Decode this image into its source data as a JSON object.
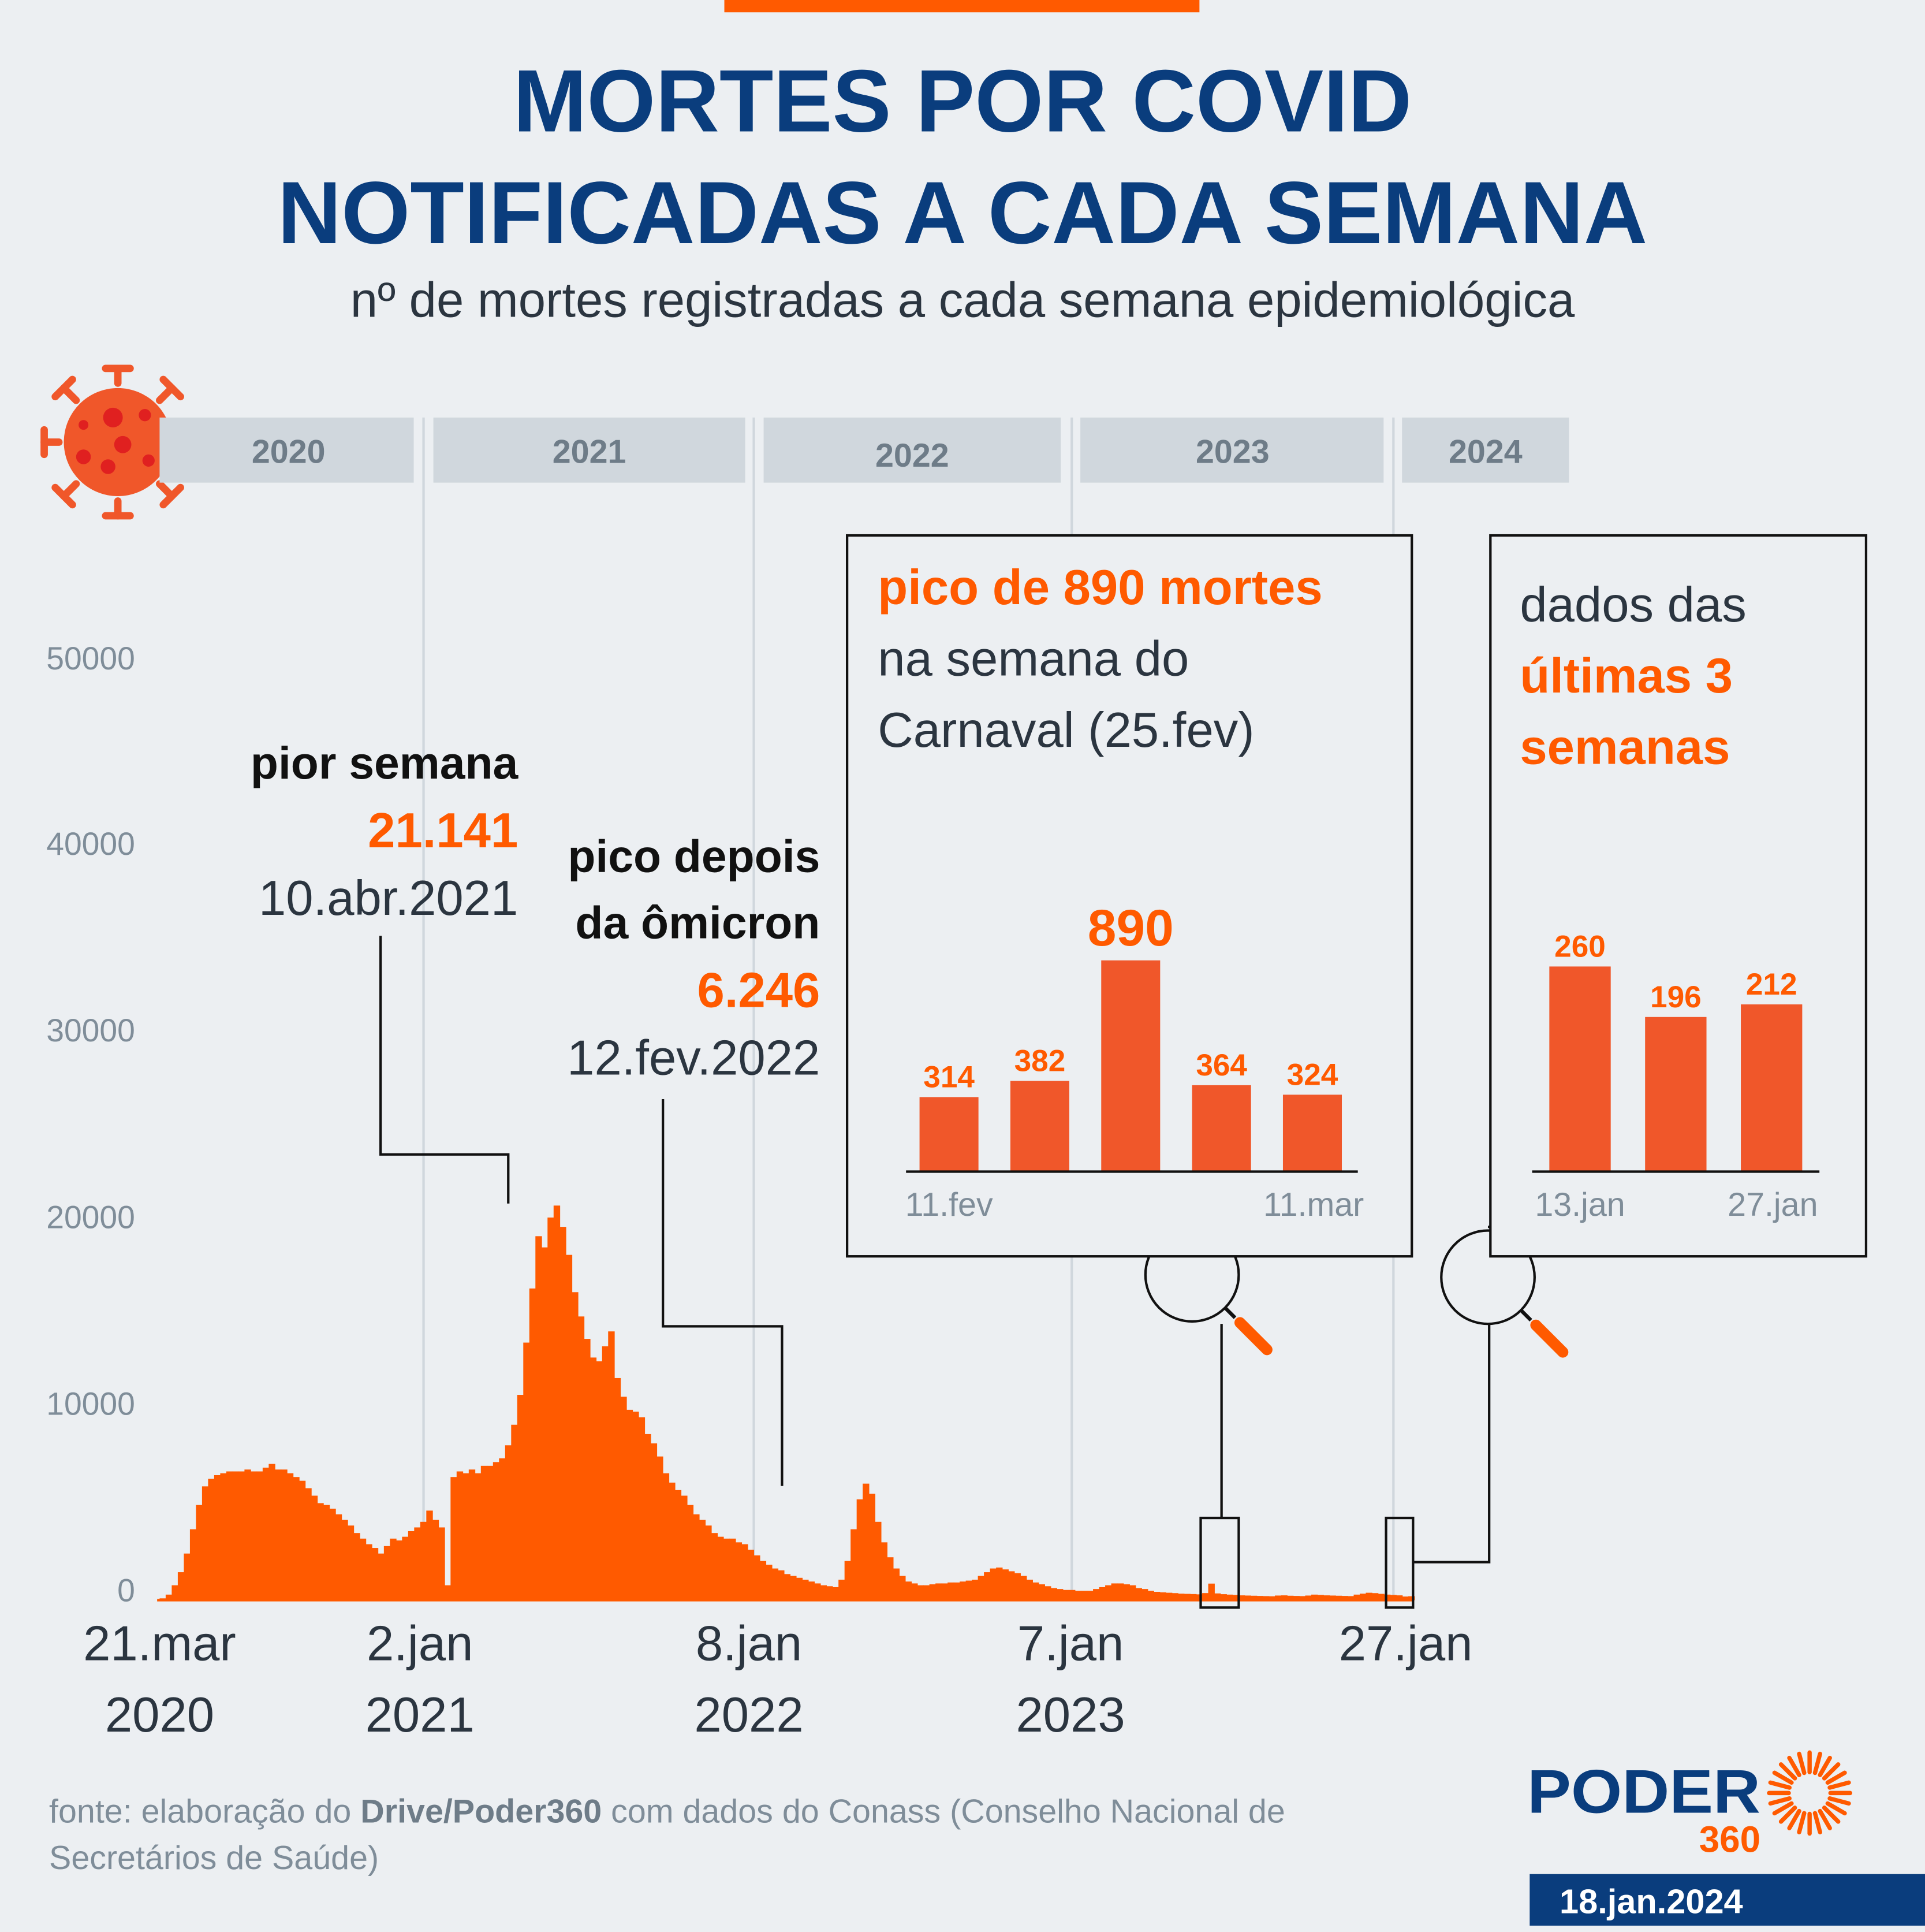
{
  "header": {
    "title_line1": "MORTES POR COVID",
    "title_line2": "NOTIFICADAS A CADA SEMANA",
    "subtitle": "nº de mortes registradas a cada semana epidemiológica"
  },
  "colors": {
    "accent": "#ff5a00",
    "bar_inset": "#f0572a",
    "title": "#0a3d7d",
    "year_band": "#d0d7dd",
    "year_text": "#6e7c88",
    "axis_text": "#7f8d99",
    "background": "#eceff2"
  },
  "icon": "virus-icon",
  "year_bands": [
    "2020",
    "2021",
    "2022",
    "2023",
    "2024"
  ],
  "y_ticks": [
    "0",
    "10000",
    "20000",
    "30000",
    "40000",
    "50000"
  ],
  "x_labels": [
    {
      "line1": "21.mar",
      "line2": "2020"
    },
    {
      "line1": "2.jan",
      "line2": "2021"
    },
    {
      "line1": "8.jan",
      "line2": "2022"
    },
    {
      "line1": "7.jan",
      "line2": "2023"
    },
    {
      "line1": "27.jan",
      "line2": ""
    }
  ],
  "annotations": {
    "worst": {
      "label": "pior semana",
      "value": "21.141",
      "date": "10.abr.2021"
    },
    "omicron": {
      "label1": "pico depois",
      "label2": "da ômicron",
      "value": "6.246",
      "date": "12.fev.2022"
    }
  },
  "inset_carnaval": {
    "title_highlight": "pico de 890 mortes",
    "title_line2": "na semana do",
    "title_line3": "Carnaval (25.fev)",
    "bar_labels": [
      "314",
      "382",
      "890",
      "364",
      "324"
    ],
    "x_first": "11.fev",
    "x_last": "11.mar"
  },
  "inset_recent": {
    "title_line1": "dados das",
    "highlight_line1": "últimas 3",
    "highlight_line2": "semanas",
    "bar_labels": [
      "260",
      "196",
      "212"
    ],
    "x_first": "13.jan",
    "x_last": "27.jan"
  },
  "footer": {
    "source_prefix": "fonte: elaboração do ",
    "source_bold": "Drive/Poder360",
    "source_suffix_line1": " com dados do Conass (Conselho Nacional de",
    "source_line2": "Secretários de Saúde)",
    "logo_word": "PODER",
    "logo_number": "360",
    "date": "18.jan.2024"
  },
  "chart_data": [
    {
      "type": "bar",
      "title": "MORTES POR COVID NOTIFICADAS A CADA SEMANA",
      "subtitle": "nº de mortes registradas a cada semana epidemiológica",
      "x_start": "2020-03-21",
      "x_end": "2024-01-27",
      "x_tick_labels": [
        "21.mar 2020",
        "2.jan 2021",
        "8.jan 2022",
        "7.jan 2023",
        "27.jan"
      ],
      "ylim": [
        0,
        50000
      ],
      "y_ticks": [
        0,
        10000,
        20000,
        30000,
        40000,
        50000
      ],
      "grid": false,
      "values": [
        100,
        300,
        800,
        1500,
        2500,
        3800,
        5100,
        6100,
        6500,
        6700,
        6800,
        6900,
        6900,
        6900,
        7000,
        6900,
        6900,
        7100,
        7300,
        7000,
        7000,
        6800,
        6600,
        6400,
        6000,
        5600,
        5200,
        5100,
        4900,
        4600,
        4300,
        4000,
        3600,
        3300,
        3000,
        2800,
        2500,
        2900,
        3300,
        3200,
        3400,
        3700,
        3900,
        4200,
        4800,
        4300,
        3900,
        800,
        6600,
        6900,
        6800,
        7000,
        6800,
        7200,
        7200,
        7400,
        7600,
        8300,
        9400,
        11000,
        13800,
        16700,
        19500,
        18900,
        20500,
        21141,
        20000,
        18500,
        16500,
        15200,
        14000,
        13000,
        12800,
        13600,
        14400,
        11900,
        10900,
        10200,
        10100,
        9800,
        8900,
        8400,
        7700,
        6800,
        6300,
        5900,
        5600,
        5100,
        4600,
        4300,
        4000,
        3600,
        3400,
        3300,
        3300,
        3100,
        3000,
        2700,
        2400,
        2100,
        1900,
        1700,
        1600,
        1400,
        1300,
        1200,
        1100,
        1000,
        900,
        800,
        750,
        700,
        1100,
        2100,
        3800,
        5400,
        6246,
        5700,
        4200,
        3100,
        2300,
        1700,
        1300,
        1000,
        900,
        800,
        800,
        850,
        900,
        900,
        950,
        950,
        1000,
        1050,
        1100,
        1300,
        1500,
        1700,
        1750,
        1650,
        1550,
        1450,
        1300,
        1100,
        950,
        850,
        750,
        650,
        600,
        550,
        550,
        500,
        500,
        500,
        600,
        700,
        800,
        900,
        900,
        850,
        800,
        650,
        600,
        500,
        450,
        420,
        400,
        380,
        350,
        340,
        330,
        314,
        382,
        890,
        364,
        324,
        300,
        280,
        260,
        250,
        240,
        230,
        220,
        210,
        250,
        260,
        240,
        230,
        220,
        250,
        300,
        280,
        260,
        250,
        240,
        230,
        220,
        300,
        350,
        400,
        380,
        340,
        300,
        280,
        260,
        196,
        212
      ]
    },
    {
      "type": "bar",
      "title": "pico de 890 mortes na semana do Carnaval (25.fev)",
      "categories": [
        "11.fev",
        "",
        "",
        "",
        "11.mar"
      ],
      "values": [
        314,
        382,
        890,
        364,
        324
      ]
    },
    {
      "type": "bar",
      "title": "dados das últimas 3 semanas",
      "categories": [
        "13.jan",
        "",
        "27.jan"
      ],
      "values": [
        260,
        196,
        212
      ]
    }
  ]
}
